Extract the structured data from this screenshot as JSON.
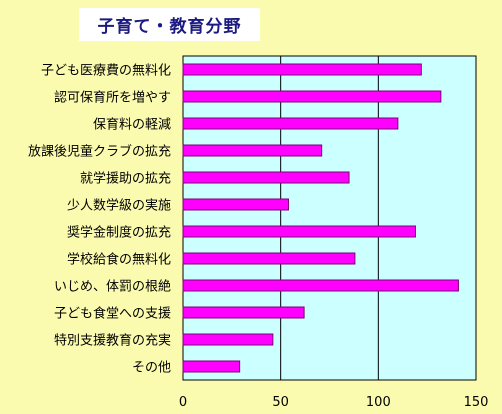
{
  "chart_data": {
    "type": "bar",
    "orientation": "horizontal",
    "title": "子育て・教育分野",
    "categories": [
      "子ども医療費の無料化",
      "認可保育所を増やす",
      "保育料の軽減",
      "放課後児童クラブの拡充",
      "就学援助の拡充",
      "少人数学級の実施",
      "奨学金制度の拡充",
      "学校給食の無料化",
      "いじめ、体罰の根絶",
      "子ども食堂への支援",
      "特別支援教育の充実",
      "その他"
    ],
    "values": [
      122,
      132,
      110,
      71,
      85,
      54,
      119,
      88,
      141,
      62,
      46,
      29
    ],
    "xlim": [
      0,
      150
    ],
    "xticks": [
      "0",
      "50",
      "100",
      "150"
    ],
    "xlabel": "",
    "ylabel": "",
    "grid": true,
    "colors": {
      "bar_fill": "#ff00ff",
      "bar_stroke": "#7a007a",
      "plot_bg": "#ccffff",
      "page_bg": "#fbfbb0",
      "title_text": "#1a1a80"
    }
  }
}
